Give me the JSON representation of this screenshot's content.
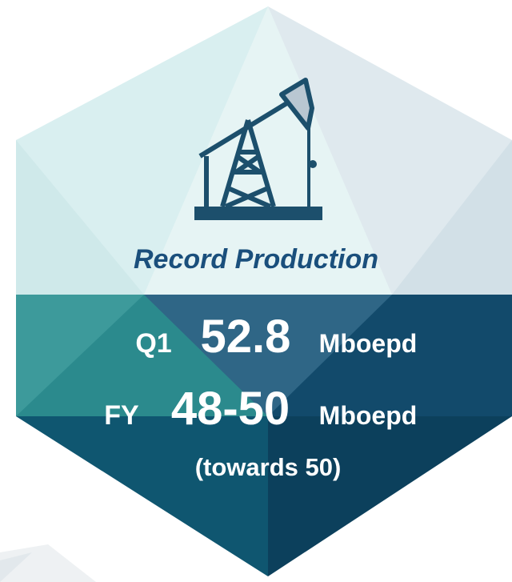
{
  "header": {
    "title": "Record Production"
  },
  "rows": [
    {
      "label": "Q1",
      "value": "52.8",
      "unit": "Mboepd"
    },
    {
      "label": "FY",
      "value": "48-50",
      "unit": "Mboepd"
    }
  ],
  "note": "(towards 50)"
}
